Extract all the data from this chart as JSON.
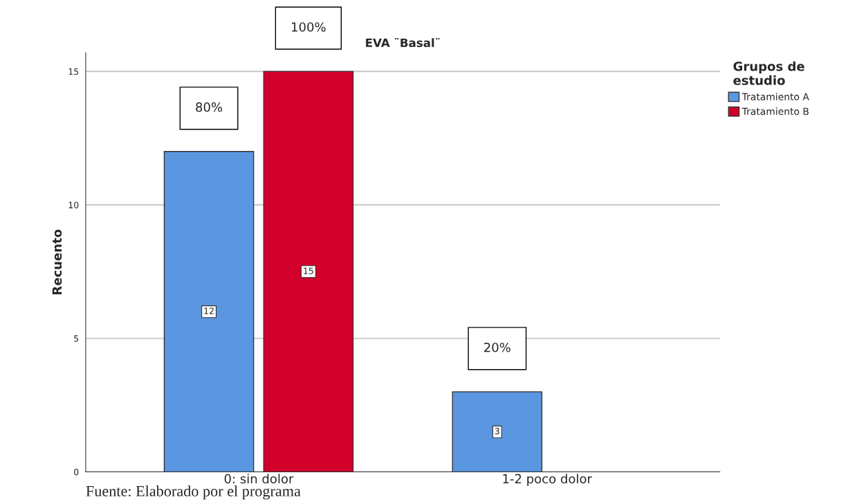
{
  "chart_data": {
    "type": "bar",
    "title": "EVA ¨Basal¨",
    "ylabel": "Recuento",
    "legend_title": "Grupos de\nestudio",
    "categories": [
      "0: sin dolor",
      "1-2 poco dolor"
    ],
    "series": [
      {
        "name": "Tratamiento A",
        "color": "#5b97e1",
        "values": [
          12,
          3
        ]
      },
      {
        "name": "Tratamiento B",
        "color": "#d2002b",
        "values": [
          15,
          null
        ]
      }
    ],
    "ylim": [
      0,
      15.7
    ],
    "yticks": [
      0,
      5,
      10,
      15
    ],
    "grid": "y",
    "legend": "top right",
    "data_labels": true,
    "annotations": [
      "80%",
      "100%",
      "20%",
      "Fuente: Elaborado por el programa"
    ]
  }
}
